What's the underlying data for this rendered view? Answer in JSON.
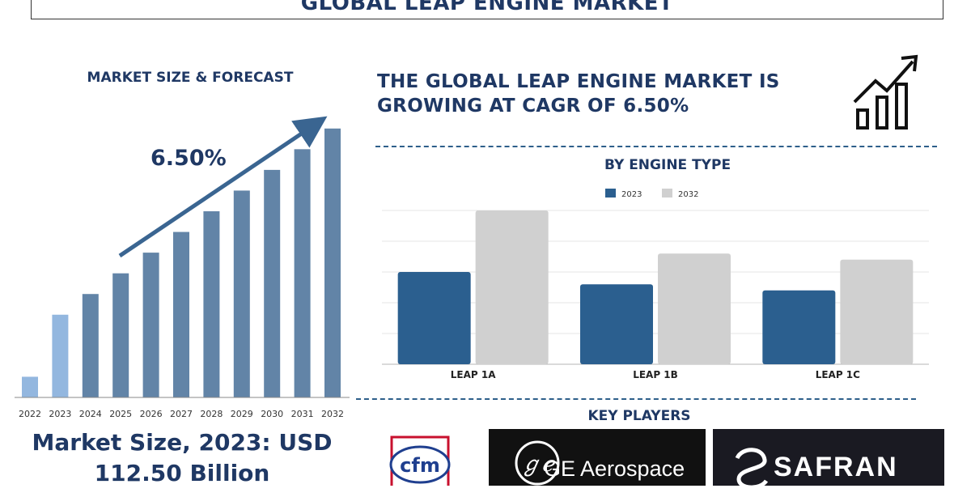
{
  "title": "GLOBAL LEAP ENGINE MARKET",
  "left_panel": {
    "title": "MARKET SIZE & FORECAST",
    "cagr_label": "6.50%",
    "market_size_line1": "Market Size, 2023: USD",
    "market_size_line2": "112.50 Billion"
  },
  "right_panel": {
    "headline_line1": "THE GLOBAL LEAP ENGINE MARKET IS",
    "headline_line2": "GROWING AT CAGR OF 6.50%",
    "chart_title": "BY ENGINE TYPE"
  },
  "key_players": {
    "title": "KEY PLAYERS",
    "players": [
      "cfm",
      "GE Aerospace",
      "SAFRAN"
    ]
  },
  "colors": {
    "primary": "#1f3864",
    "bar_left": "#6284a7",
    "bar_highlight": "#93b7df",
    "series_2023": "#2b5f8f",
    "series_2032": "#d0d0d0",
    "arrow": "#3a6591"
  },
  "chart_data": [
    {
      "type": "bar",
      "title": "MARKET SIZE & FORECAST",
      "categories": [
        "2022",
        "2023",
        "2024",
        "2025",
        "2026",
        "2027",
        "2028",
        "2029",
        "2030",
        "2031",
        "2032"
      ],
      "values": [
        10,
        40,
        50,
        60,
        70,
        80,
        90,
        100,
        110,
        120,
        130
      ],
      "highlight": [
        "2022",
        "2023"
      ],
      "annotation": "6.50%",
      "ylim": [
        0,
        135
      ]
    },
    {
      "type": "bar",
      "title": "BY ENGINE TYPE",
      "categories": [
        "LEAP 1A",
        "LEAP 1B",
        "LEAP 1C"
      ],
      "series": [
        {
          "name": "2023",
          "values": [
            3.0,
            2.6,
            2.4
          ]
        },
        {
          "name": "2032",
          "values": [
            5.0,
            3.6,
            3.4
          ]
        }
      ],
      "ylim": [
        0,
        5
      ],
      "grid": true,
      "legend": "top"
    }
  ]
}
